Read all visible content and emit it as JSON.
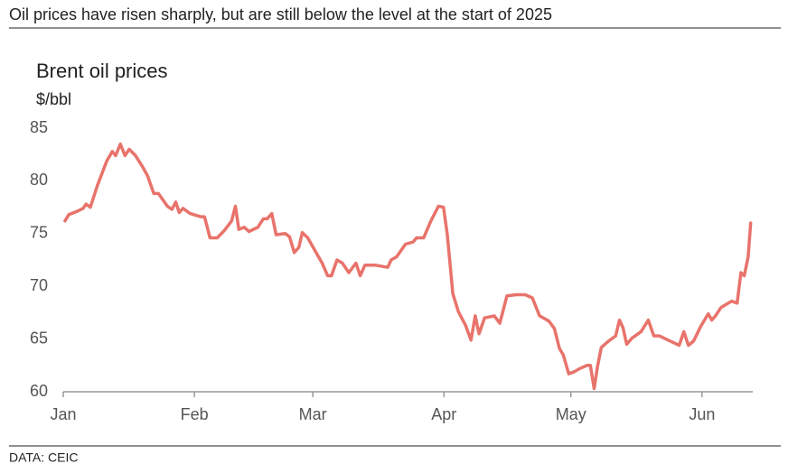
{
  "chart_data": {
    "type": "line",
    "title": "Oil prices have risen sharply, but are still below the level at the start of 2025",
    "subtitle": "Brent oil prices",
    "y_label": "$/bbl",
    "source": "DATA: CEIC",
    "color": "#e8736b",
    "x": [
      0.4,
      1.3,
      3.2,
      4.7,
      5.4,
      6.4,
      8.1,
      10.3,
      11.6,
      12.4,
      13.5,
      14.6,
      15.6,
      17.1,
      18.8,
      19.9,
      21.4,
      22.5,
      24.6,
      25.7,
      26.6,
      27.4,
      28.3,
      30.0,
      32.5,
      33.4,
      34.7,
      36.4,
      38.1,
      39.8,
      40.7,
      41.5,
      42.8,
      43.9,
      46.0,
      47.3,
      48.2,
      49.3,
      50.3,
      52.5,
      53.5,
      54.6,
      55.7,
      56.5,
      57.8,
      59.5,
      61.2,
      62.5,
      63.4,
      64.7,
      66.0,
      67.5,
      69.2,
      70.2,
      71.3,
      73.9,
      76.7,
      77.5,
      78.8,
      80.9,
      82.7,
      83.5,
      85.2,
      86.9,
      88.7,
      89.9,
      90.8,
      92.1,
      93.4,
      95.1,
      96.4,
      97.4,
      98.3,
      99.6,
      101.9,
      103.2,
      104.9,
      107.1,
      109.2,
      110.9,
      112.6,
      114.8,
      116.1,
      117.3,
      118.2,
      119.5,
      120.8,
      122.1,
      123.8,
      124.6,
      125.5,
      126.3,
      127.2,
      128.9,
      130.6,
      131.5,
      132.3,
      133.2,
      134.5,
      136.6,
      138.3,
      139.6,
      140.9,
      143.0,
      145.6,
      146.7,
      147.8,
      149.0,
      150.7,
      152.5,
      153.3,
      154.2,
      155.5,
      158.0,
      159.3,
      160.2,
      161.0,
      161.9,
      162.5
    ],
    "values": [
      76.2,
      76.8,
      77.1,
      77.4,
      77.8,
      77.5,
      79.6,
      81.9,
      82.8,
      82.4,
      83.5,
      82.4,
      83.0,
      82.4,
      81.3,
      80.5,
      78.8,
      78.8,
      77.6,
      77.3,
      78.0,
      77.0,
      77.4,
      76.9,
      76.6,
      76.6,
      74.6,
      74.6,
      75.3,
      76.2,
      77.6,
      75.4,
      75.6,
      75.2,
      75.6,
      76.4,
      76.4,
      76.9,
      74.9,
      75.0,
      74.7,
      73.2,
      73.7,
      75.1,
      74.6,
      73.4,
      72.2,
      71.0,
      71.0,
      72.5,
      72.2,
      71.3,
      72.2,
      71.0,
      72.0,
      72.0,
      71.8,
      72.5,
      72.8,
      74.0,
      74.2,
      74.6,
      74.6,
      76.2,
      77.6,
      77.5,
      74.9,
      69.3,
      67.6,
      66.3,
      64.9,
      67.2,
      65.5,
      67.0,
      67.2,
      66.5,
      69.1,
      69.2,
      69.2,
      68.9,
      67.2,
      66.7,
      66.0,
      64.1,
      63.5,
      61.7,
      61.9,
      62.2,
      62.5,
      62.5,
      60.3,
      62.4,
      64.2,
      64.8,
      65.3,
      66.8,
      66.1,
      64.5,
      65.1,
      65.7,
      66.8,
      65.3,
      65.3,
      64.9,
      64.4,
      65.7,
      64.4,
      64.8,
      66.2,
      67.4,
      66.8,
      67.2,
      68.0,
      68.6,
      68.4,
      71.3,
      71.0,
      72.8,
      76.0
    ],
    "xlim": [
      0,
      163
    ],
    "xticks": [
      {
        "value": 0,
        "label": "Jan"
      },
      {
        "value": 31,
        "label": "Feb"
      },
      {
        "value": 59,
        "label": "Mar"
      },
      {
        "value": 90,
        "label": "Apr"
      },
      {
        "value": 120,
        "label": "May"
      },
      {
        "value": 151,
        "label": "Jun"
      }
    ],
    "ylim": [
      60,
      85
    ],
    "yticks": [
      60,
      65,
      70,
      75,
      80,
      85
    ],
    "grid": false
  }
}
